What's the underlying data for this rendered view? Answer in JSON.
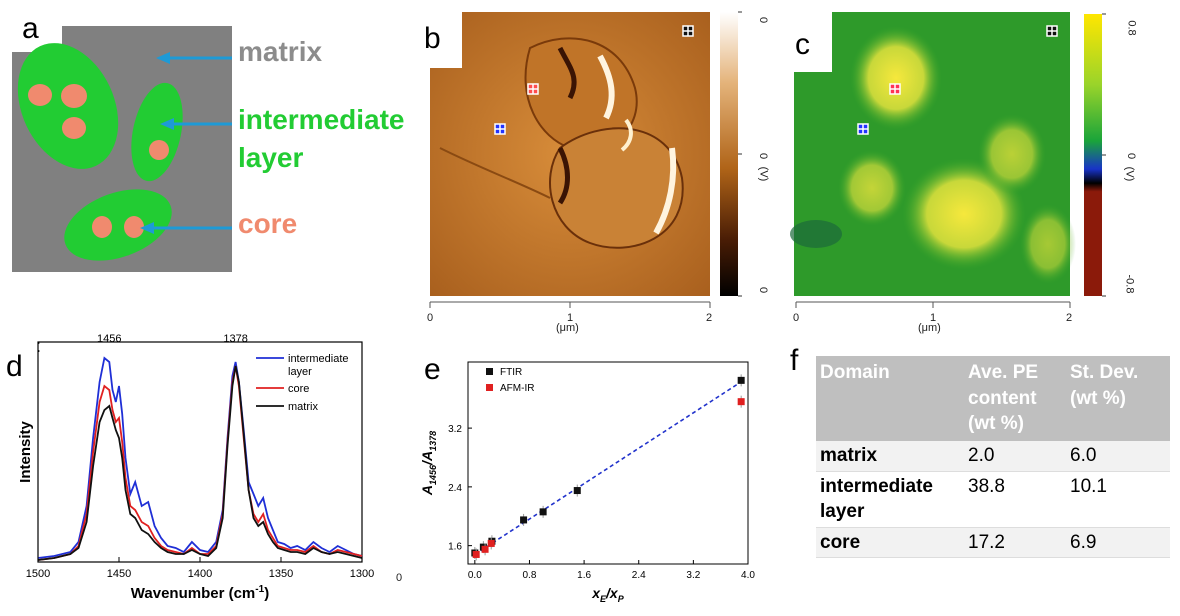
{
  "panel_labels": {
    "a": "a",
    "b": "b",
    "c": "c",
    "d": "d",
    "e": "e",
    "f": "f"
  },
  "panel_a": {
    "labels": {
      "matrix": "matrix",
      "intermediate_line1": "intermediate",
      "intermediate_line2": "layer",
      "core": "core"
    },
    "colors": {
      "matrix": "#808080",
      "intermediate": "#22cc33",
      "core": "#f08a6e",
      "arrow": "#1e9ad6",
      "matrix_text": "#8c8c8c",
      "inter_text": "#22cc33",
      "core_text": "#f08a6e"
    }
  },
  "panel_b": {
    "x_ticks": [
      "0",
      "1",
      "2"
    ],
    "x_unit": "(μm)",
    "scale_ticks": [
      "0",
      "0",
      "0"
    ],
    "scale_unit": "(V)"
  },
  "panel_c": {
    "x_ticks": [
      "0",
      "1",
      "2"
    ],
    "x_unit": "(μm)",
    "scale_ticks": [
      "0.8",
      "0",
      "-0.8"
    ],
    "scale_unit": "(V)"
  },
  "panel_d_extra": "0",
  "panel_d_stray": ":",
  "chart_data": [
    {
      "type": "line",
      "title": "",
      "xlabel": "Wavenumber (cm⁻¹)",
      "xlabel_main": "Wavenumber (cm",
      "xlabel_sup": "-1",
      "xlabel_close": ")",
      "ylabel": "Intensity",
      "xlim": [
        1500,
        1300
      ],
      "ylim": [
        0,
        1.1
      ],
      "x_ticks": [
        "1500",
        "1450",
        "1400",
        "1350",
        "1300"
      ],
      "peak_labels": [
        {
          "x": 1456,
          "label": "1456"
        },
        {
          "x": 1378,
          "label": "1378"
        }
      ],
      "legend": [
        "intermediate layer",
        "core",
        "matrix"
      ],
      "series": [
        {
          "name": "intermediate layer",
          "color": "#1f2fd6",
          "x": [
            1500,
            1490,
            1480,
            1475,
            1470,
            1466,
            1462,
            1459,
            1456,
            1454,
            1452,
            1450,
            1448,
            1446,
            1443,
            1440,
            1436,
            1432,
            1428,
            1424,
            1420,
            1415,
            1410,
            1405,
            1400,
            1395,
            1390,
            1386,
            1383,
            1380,
            1378,
            1376,
            1373,
            1370,
            1367,
            1364,
            1361,
            1358,
            1355,
            1352,
            1348,
            1344,
            1340,
            1335,
            1330,
            1325,
            1320,
            1315,
            1310,
            1305,
            1300
          ],
          "y": [
            0.02,
            0.03,
            0.05,
            0.1,
            0.28,
            0.62,
            0.9,
            1.02,
            1.0,
            0.86,
            0.8,
            0.88,
            0.74,
            0.52,
            0.34,
            0.4,
            0.28,
            0.3,
            0.18,
            0.12,
            0.08,
            0.07,
            0.05,
            0.1,
            0.06,
            0.05,
            0.1,
            0.26,
            0.62,
            0.93,
            1.0,
            0.9,
            0.66,
            0.4,
            0.34,
            0.28,
            0.32,
            0.22,
            0.16,
            0.1,
            0.09,
            0.07,
            0.08,
            0.06,
            0.1,
            0.07,
            0.05,
            0.08,
            0.06,
            0.04,
            0.03
          ]
        },
        {
          "name": "core",
          "color": "#e02020",
          "x": [
            1500,
            1490,
            1480,
            1475,
            1470,
            1466,
            1462,
            1459,
            1456,
            1454,
            1452,
            1450,
            1448,
            1446,
            1443,
            1440,
            1436,
            1432,
            1428,
            1424,
            1420,
            1415,
            1410,
            1405,
            1400,
            1395,
            1390,
            1386,
            1383,
            1380,
            1378,
            1376,
            1373,
            1370,
            1367,
            1364,
            1361,
            1358,
            1355,
            1352,
            1348,
            1344,
            1340,
            1335,
            1330,
            1325,
            1320,
            1315,
            1310,
            1305,
            1300
          ],
          "y": [
            0.01,
            0.02,
            0.04,
            0.08,
            0.24,
            0.55,
            0.8,
            0.88,
            0.86,
            0.76,
            0.7,
            0.72,
            0.6,
            0.42,
            0.28,
            0.26,
            0.2,
            0.18,
            0.12,
            0.08,
            0.06,
            0.05,
            0.04,
            0.07,
            0.04,
            0.04,
            0.08,
            0.24,
            0.6,
            0.9,
            0.98,
            0.88,
            0.62,
            0.36,
            0.24,
            0.2,
            0.24,
            0.16,
            0.12,
            0.08,
            0.07,
            0.06,
            0.06,
            0.05,
            0.08,
            0.05,
            0.04,
            0.06,
            0.05,
            0.04,
            0.03
          ]
        },
        {
          "name": "matrix",
          "color": "#111111",
          "x": [
            1500,
            1490,
            1480,
            1475,
            1470,
            1466,
            1462,
            1459,
            1456,
            1454,
            1452,
            1450,
            1448,
            1446,
            1443,
            1440,
            1436,
            1432,
            1428,
            1424,
            1420,
            1415,
            1410,
            1405,
            1400,
            1395,
            1390,
            1386,
            1383,
            1380,
            1378,
            1376,
            1373,
            1370,
            1367,
            1364,
            1361,
            1358,
            1355,
            1352,
            1348,
            1344,
            1340,
            1335,
            1330,
            1325,
            1320,
            1315,
            1310,
            1305,
            1300
          ],
          "y": [
            0.01,
            0.02,
            0.04,
            0.07,
            0.2,
            0.48,
            0.7,
            0.76,
            0.78,
            0.72,
            0.66,
            0.62,
            0.52,
            0.36,
            0.24,
            0.22,
            0.16,
            0.14,
            0.1,
            0.07,
            0.05,
            0.04,
            0.04,
            0.06,
            0.04,
            0.03,
            0.07,
            0.22,
            0.58,
            0.88,
            0.98,
            0.9,
            0.64,
            0.36,
            0.22,
            0.18,
            0.2,
            0.14,
            0.1,
            0.07,
            0.06,
            0.05,
            0.05,
            0.04,
            0.07,
            0.05,
            0.04,
            0.05,
            0.04,
            0.03,
            0.02
          ]
        }
      ]
    },
    {
      "type": "scatter",
      "title": "",
      "xlabel": "xE/xP",
      "xlabel_parts": [
        "x",
        "E",
        "/x",
        "P"
      ],
      "ylabel": "A1456/A1378",
      "ylabel_parts": [
        "A",
        "1456",
        "/A",
        "1378"
      ],
      "xlim": [
        -0.1,
        4.0
      ],
      "ylim": [
        1.35,
        4.1
      ],
      "x_ticks": [
        0.0,
        0.8,
        1.6,
        2.4,
        3.2,
        4.0
      ],
      "x_tick_labels": [
        "0.0",
        "0.8",
        "1.6",
        "2.4",
        "3.2",
        "4.0"
      ],
      "y_ticks": [
        1.6,
        2.4,
        3.2
      ],
      "y_tick_labels": [
        "1.6",
        "2.4",
        "3.2"
      ],
      "legend": [
        "FTIR",
        "AFM-IR"
      ],
      "series": [
        {
          "name": "FTIR",
          "color": "#111111",
          "x": [
            0.0,
            0.125,
            0.25,
            0.714,
            1.0,
            1.5,
            3.9
          ],
          "y": [
            1.5,
            1.58,
            1.66,
            1.95,
            2.06,
            2.35,
            3.85
          ]
        },
        {
          "name": "AFM-IR",
          "color": "#e02020",
          "x": [
            0.02,
            0.15,
            0.24,
            3.9
          ],
          "y": [
            1.48,
            1.55,
            1.63,
            3.56
          ]
        }
      ],
      "fit_line": {
        "color": "#2233cc",
        "x": [
          0.0,
          3.9
        ],
        "y": [
          1.48,
          3.83
        ]
      }
    }
  ],
  "table": {
    "headers": [
      "Domain",
      "Ave. PE content (wt %)",
      "St. Dev. (wt %)"
    ],
    "header_lines": [
      [
        "Domain"
      ],
      [
        "Ave. PE",
        "content",
        "(wt %)"
      ],
      [
        "St. Dev.",
        "(wt %)"
      ]
    ],
    "rows": [
      {
        "domain_lines": [
          "matrix"
        ],
        "ave": "2.0",
        "sd": "6.0"
      },
      {
        "domain_lines": [
          "intermediate",
          "layer"
        ],
        "ave": "38.8",
        "sd": "10.1"
      },
      {
        "domain_lines": [
          "core"
        ],
        "ave": "17.2",
        "sd": "6.9"
      }
    ]
  }
}
